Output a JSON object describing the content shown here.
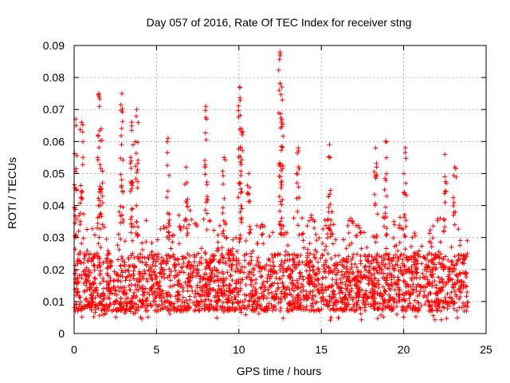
{
  "chart_data": {
    "type": "scatter",
    "title": "Day 057 of 2016, Rate Of TEC Index for receiver stng",
    "xlabel": "GPS time / hours",
    "ylabel": "ROTI / TECUs",
    "xlim": [
      0,
      25
    ],
    "ylim": [
      0,
      0.09
    ],
    "x_ticks": [
      {
        "value": 0,
        "label": "0"
      },
      {
        "value": 5,
        "label": "5"
      },
      {
        "value": 10,
        "label": "10"
      },
      {
        "value": 15,
        "label": "15"
      },
      {
        "value": 20,
        "label": "20"
      },
      {
        "value": 25,
        "label": "25"
      }
    ],
    "y_ticks": [
      {
        "value": 0,
        "label": "0"
      },
      {
        "value": 0.01,
        "label": "0.01"
      },
      {
        "value": 0.02,
        "label": "0.02"
      },
      {
        "value": 0.03,
        "label": "0.03"
      },
      {
        "value": 0.04,
        "label": "0.04"
      },
      {
        "value": 0.05,
        "label": "0.05"
      },
      {
        "value": 0.06,
        "label": "0.06"
      },
      {
        "value": 0.07,
        "label": "0.07"
      },
      {
        "value": 0.08,
        "label": "0.08"
      },
      {
        "value": 0.09,
        "label": "0.09"
      }
    ],
    "grid": true,
    "marker": "+",
    "color": "#ff0000",
    "x_data_end": 23.9,
    "envelope": [
      [
        0.0,
        0.04
      ],
      [
        0.5,
        0.04
      ],
      [
        1.0,
        0.032
      ],
      [
        1.5,
        0.04
      ],
      [
        2.0,
        0.03
      ],
      [
        2.5,
        0.032
      ],
      [
        3.0,
        0.045
      ],
      [
        3.5,
        0.04
      ],
      [
        4.0,
        0.038
      ],
      [
        4.5,
        0.035
      ],
      [
        5.0,
        0.036
      ],
      [
        5.5,
        0.034
      ],
      [
        6.0,
        0.032
      ],
      [
        6.5,
        0.04
      ],
      [
        7.0,
        0.04
      ],
      [
        7.5,
        0.034
      ],
      [
        8.0,
        0.04
      ],
      [
        8.5,
        0.036
      ],
      [
        9.0,
        0.034
      ],
      [
        9.5,
        0.034
      ],
      [
        10.0,
        0.04
      ],
      [
        10.5,
        0.036
      ],
      [
        11.0,
        0.036
      ],
      [
        11.5,
        0.036
      ],
      [
        12.0,
        0.036
      ],
      [
        12.5,
        0.044
      ],
      [
        13.0,
        0.038
      ],
      [
        13.5,
        0.038
      ],
      [
        14.0,
        0.042
      ],
      [
        14.5,
        0.036
      ],
      [
        15.0,
        0.036
      ],
      [
        15.5,
        0.04
      ],
      [
        16.0,
        0.036
      ],
      [
        16.5,
        0.036
      ],
      [
        17.0,
        0.036
      ],
      [
        17.5,
        0.032
      ],
      [
        18.0,
        0.036
      ],
      [
        18.5,
        0.04
      ],
      [
        19.0,
        0.042
      ],
      [
        19.5,
        0.038
      ],
      [
        20.0,
        0.04
      ],
      [
        20.5,
        0.034
      ],
      [
        21.0,
        0.032
      ],
      [
        21.5,
        0.032
      ],
      [
        22.0,
        0.036
      ],
      [
        22.5,
        0.036
      ],
      [
        23.0,
        0.034
      ],
      [
        23.5,
        0.032
      ],
      [
        23.9,
        0.03
      ]
    ],
    "spikes": [
      {
        "x": 0.1,
        "y": 0.067
      },
      {
        "x": 0.45,
        "y": 0.066
      },
      {
        "x": 1.5,
        "y": 0.075
      },
      {
        "x": 1.65,
        "y": 0.064
      },
      {
        "x": 2.9,
        "y": 0.075
      },
      {
        "x": 3.5,
        "y": 0.066
      },
      {
        "x": 3.8,
        "y": 0.07
      },
      {
        "x": 5.7,
        "y": 0.061
      },
      {
        "x": 6.8,
        "y": 0.052
      },
      {
        "x": 8.0,
        "y": 0.071
      },
      {
        "x": 9.1,
        "y": 0.055
      },
      {
        "x": 10.15,
        "y": 0.064
      },
      {
        "x": 10.05,
        "y": 0.077
      },
      {
        "x": 10.6,
        "y": 0.05
      },
      {
        "x": 12.5,
        "y": 0.088
      },
      {
        "x": 12.6,
        "y": 0.077
      },
      {
        "x": 13.6,
        "y": 0.058
      },
      {
        "x": 15.5,
        "y": 0.059
      },
      {
        "x": 18.3,
        "y": 0.058
      },
      {
        "x": 18.9,
        "y": 0.06
      },
      {
        "x": 20.1,
        "y": 0.058
      },
      {
        "x": 22.5,
        "y": 0.056
      },
      {
        "x": 23.1,
        "y": 0.052
      }
    ]
  }
}
